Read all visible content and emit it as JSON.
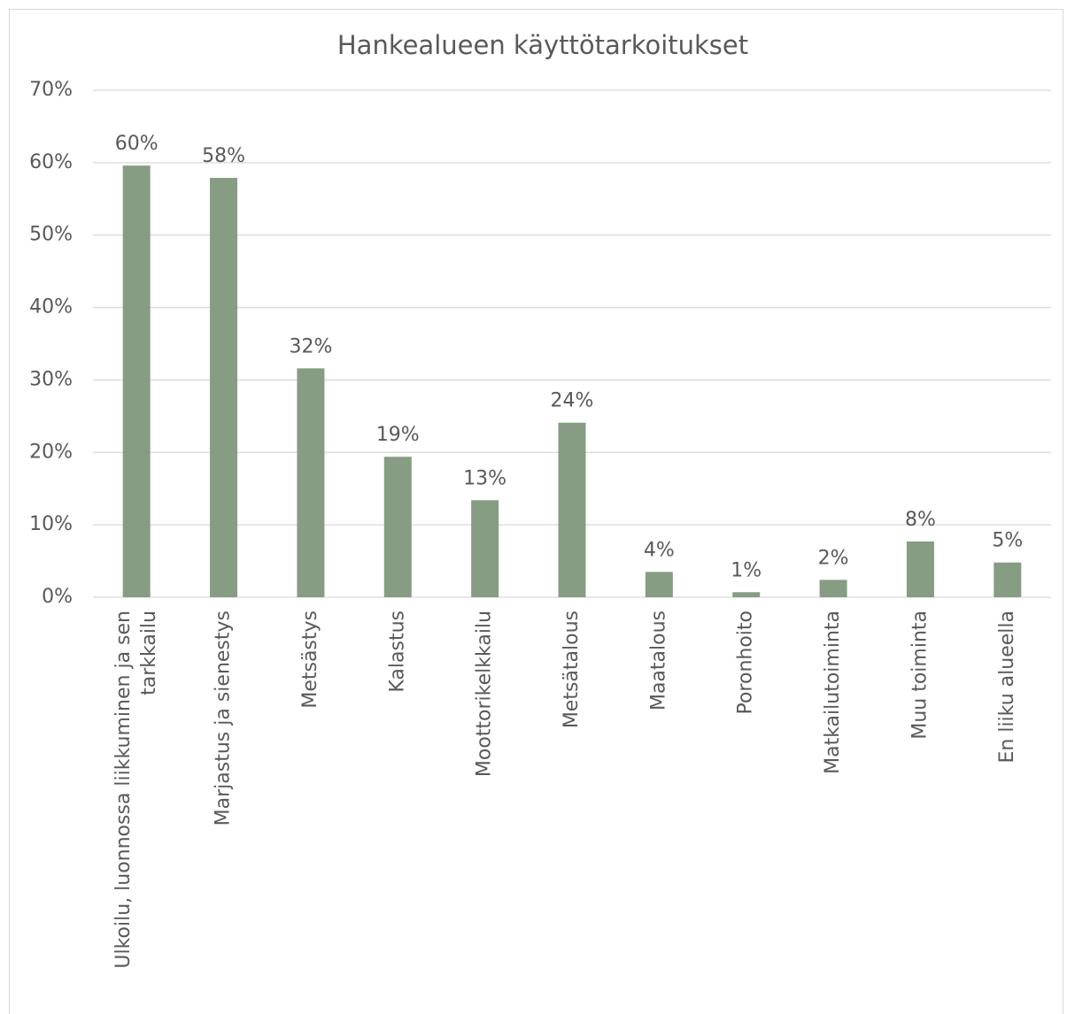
{
  "chart_data": {
    "type": "bar",
    "title": "Hankealueen käyttötarkoitukset",
    "categories": [
      "Ulkoilu, luonnossa liikkuminen ja sen tarkkailu",
      "Marjastus ja sienestys",
      "Metsästys",
      "Kalastus",
      "Moottorikelkkailu",
      "Metsätalous",
      "Maatalous",
      "Poronhoito",
      "Matkailutoiminta",
      "Muu toiminta",
      "En liiku alueella"
    ],
    "values": [
      59.6,
      57.9,
      31.6,
      19.4,
      13.4,
      24.1,
      3.5,
      0.7,
      2.4,
      7.7,
      4.8
    ],
    "value_labels": [
      "60%",
      "58%",
      "32%",
      "19%",
      "13%",
      "24%",
      "4%",
      "1%",
      "2%",
      "8%",
      "5%"
    ],
    "color": "#869d84",
    "ylim": [
      0,
      70
    ],
    "yticks": [
      {
        "value": 0,
        "label": "0%"
      },
      {
        "value": 10,
        "label": "10%"
      },
      {
        "value": 20,
        "label": "20%"
      },
      {
        "value": 30,
        "label": "30%"
      },
      {
        "value": 40,
        "label": "40%"
      },
      {
        "value": 50,
        "label": "50%"
      },
      {
        "value": 60,
        "label": "60%"
      },
      {
        "value": 70,
        "label": "70%"
      }
    ],
    "grid": true
  }
}
